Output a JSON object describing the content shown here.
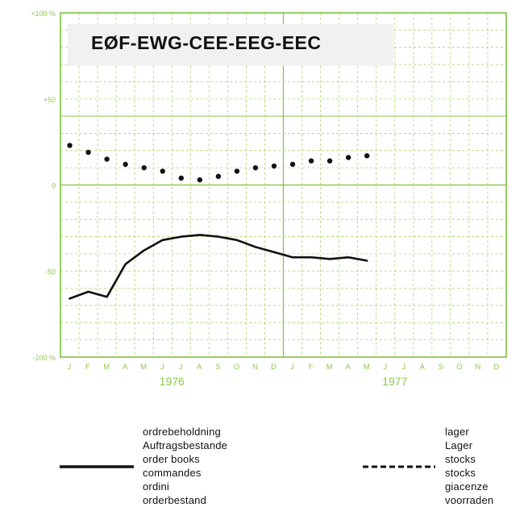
{
  "chart_data": {
    "type": "line",
    "title": "EØF-EWG-CEE-EEG-EEC",
    "y_ticks": [
      {
        "value": 100,
        "label": "+100 %"
      },
      {
        "value": 50,
        "label": "+50"
      },
      {
        "value": 0,
        "label": "0"
      },
      {
        "value": -50,
        "label": "-50"
      },
      {
        "value": -100,
        "label": "-100 %"
      }
    ],
    "ylim": [
      -100,
      100
    ],
    "month_labels": [
      "J",
      "F",
      "M",
      "A",
      "M",
      "J",
      "J",
      "A",
      "S",
      "O",
      "N",
      "D",
      "J",
      "F",
      "M",
      "A",
      "M",
      "J",
      "J",
      "A",
      "S",
      "O",
      "N",
      "D"
    ],
    "year_labels": [
      "1976",
      "1977"
    ],
    "series": [
      {
        "name_lines": [
          "ordrebeholdning",
          "Auftragsbestande",
          "order books",
          "commandes",
          "ordini",
          "orderbestand"
        ],
        "style": "solid",
        "x": [
          "1976-01",
          "1976-02",
          "1976-03",
          "1976-04",
          "1976-05",
          "1976-06",
          "1976-07",
          "1976-08",
          "1976-09",
          "1976-10",
          "1976-11",
          "1976-12",
          "1977-01",
          "1977-02",
          "1977-03",
          "1977-04",
          "1977-05"
        ],
        "values": [
          -66,
          -62,
          -65,
          -46,
          -38,
          -32,
          -30,
          -29,
          -30,
          -32,
          -36,
          -39,
          -42,
          -42,
          -43,
          -42,
          -44
        ]
      },
      {
        "name_lines": [
          "lager",
          "Lager",
          "stocks",
          "stocks",
          "giacenze",
          "voorraden"
        ],
        "style": "dotted",
        "x": [
          "1976-01",
          "1976-02",
          "1976-03",
          "1976-04",
          "1976-05",
          "1976-06",
          "1976-07",
          "1976-08",
          "1976-09",
          "1976-10",
          "1976-11",
          "1976-12",
          "1977-01",
          "1977-02",
          "1977-03",
          "1977-04",
          "1977-05"
        ],
        "values": [
          23,
          19,
          15,
          12,
          10,
          8,
          4,
          3,
          5,
          8,
          10,
          11,
          12,
          14,
          14,
          16,
          17
        ]
      }
    ],
    "grid": true,
    "colors": {
      "grid": "#a8d468",
      "frame": "#7ec23a",
      "axis_text": "#8cc84b",
      "line": "#111111"
    }
  }
}
